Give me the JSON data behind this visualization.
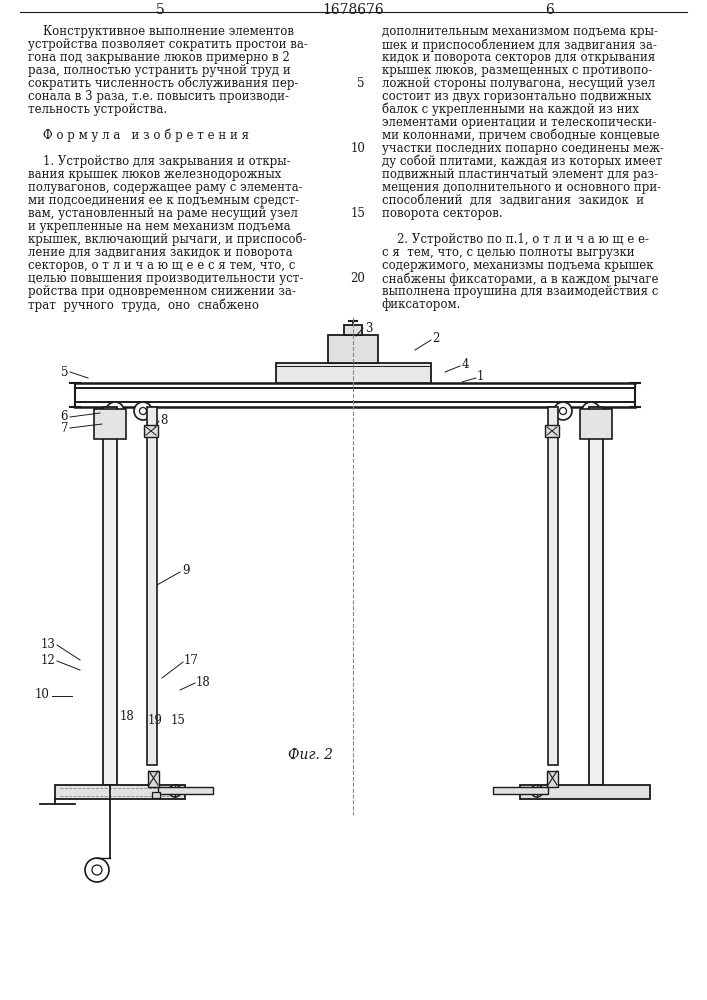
{
  "page_number_left": "5",
  "page_number_center": "1678676",
  "page_number_right": "6",
  "left_col_lines": [
    "    Конструктивное выполнение элементов",
    "устройства позволяет сократить простои ва-",
    "гона под закрывание люков примерно в 2",
    "раза, полностью устранить ручной труд и",
    "сократить численность обслуживания пер-",
    "сонала в 3 раза, т.е. повысить производи-",
    "тельность устройства.",
    "",
    "    Ф о р м у л а   и з о б р е т е н и я",
    "",
    "    1. Устройство для закрывания и откры-",
    "вания крышек люков железнодорожных",
    "полувагонов, содержащее раму с элемента-",
    "ми подсоединения ее к подъемным средст-",
    "вам, установленный на раме несущий узел",
    "и укрепленные на нем механизм подъема",
    "крышек, включающий рычаги, и приспособ-",
    "ление для задвигания закидок и поворота",
    "секторов, о т л и ч а ю щ е е с я тем, что, с",
    "целью повышения производительности уст-",
    "ройства при одновременном снижении за-",
    "трат  ручного  труда,  оно  снабжено"
  ],
  "right_col_lines": [
    "дополнительным механизмом подъема кры-",
    "шек и приспособлением для задвигания за-",
    "кидок и поворота секторов для открывания",
    "крышек люков, размещенных с противопо-",
    "ложной стороны полувагона, несущий узел",
    "состоит из двух горизонтально подвижных",
    "балок с укрепленными на каждой из них",
    "элементами ориентации и телескопически-",
    "ми колоннами, причем свободные концевые",
    "участки последних попарно соединены меж-",
    "ду собой плитами, каждая из которых имеет",
    "подвижный пластинчатый элемент для раз-",
    "мещения дополнительного и основного при-",
    "способлений  для  задвигания  закидок  и",
    "поворота секторов.",
    "",
    "    2. Устройство по п.1, о т л и ч а ю щ е е-",
    "с я  тем, что, с целью полноты выгрузки",
    "содержимого, механизмы подъема крышек",
    "снабжены фиксаторами, а в каждом рычаге",
    "выполнена проушина для взаимодействия с",
    "фиксатором."
  ],
  "line_numbers": [
    5,
    10,
    15,
    20
  ],
  "fig_caption": "Фиг. 2",
  "bg_color": "#ffffff",
  "text_color": "#1a1a1a",
  "line_color": "#1a1a1a"
}
